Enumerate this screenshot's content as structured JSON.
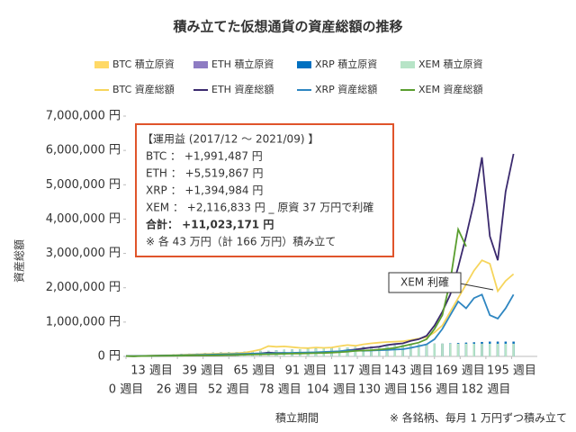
{
  "chart_data": {
    "type": "combo",
    "title": "積み立てた仮想通貨の資産総額の推移",
    "ylabel": "資産総額",
    "xlabel": "積立期間",
    "footnote": "※ 各銘柄、毎月 1 万円ずつ積み立て",
    "note_box": [
      "【運用益 (2017/12 ～ 2021/09) 】",
      "BTC ： +1,991,487 円",
      "ETH ： +5,519,867 円",
      "XRP ： +1,394,984 円",
      "XEM ： +2,116,833 円 _ 原資 37 万円で利確",
      "合計： +11,023,171 円",
      "※ 各 43 万円（計 166 万円）積み立て"
    ],
    "callout": "XEM 利確",
    "xlim": [
      0,
      208
    ],
    "xticks": [
      {
        "value": 0,
        "label": "0 週目"
      },
      {
        "value": 13,
        "label": "13 週目"
      },
      {
        "value": 26,
        "label": "26 週目"
      },
      {
        "value": 39,
        "label": "39 週目"
      },
      {
        "value": 52,
        "label": "52 週目"
      },
      {
        "value": 65,
        "label": "65 週目"
      },
      {
        "value": 78,
        "label": "78 週目"
      },
      {
        "value": 91,
        "label": "91 週目"
      },
      {
        "value": 104,
        "label": "104 週目"
      },
      {
        "value": 117,
        "label": "117 週目"
      },
      {
        "value": 130,
        "label": "130 週目"
      },
      {
        "value": 143,
        "label": "143 週目"
      },
      {
        "value": 156,
        "label": "156 週目"
      },
      {
        "value": 169,
        "label": "169 週目"
      },
      {
        "value": 182,
        "label": "182 週目"
      },
      {
        "value": 195,
        "label": "195 週目"
      }
    ],
    "ylim": [
      0,
      7000000
    ],
    "yticks": [
      {
        "value": 0,
        "label": "0 円"
      },
      {
        "value": 1000000,
        "label": "1,000,000 円"
      },
      {
        "value": 2000000,
        "label": "2,000,000 円"
      },
      {
        "value": 3000000,
        "label": "3,000,000 円"
      },
      {
        "value": 4000000,
        "label": "4,000,000 円"
      },
      {
        "value": 5000000,
        "label": "5,000,000 円"
      },
      {
        "value": 6000000,
        "label": "6,000,000 円"
      },
      {
        "value": 7000000,
        "label": "7,000,000 円"
      }
    ],
    "x": [
      0,
      4,
      8,
      12,
      16,
      20,
      24,
      28,
      32,
      36,
      40,
      44,
      48,
      52,
      56,
      60,
      64,
      68,
      72,
      76,
      80,
      84,
      88,
      92,
      96,
      100,
      104,
      108,
      112,
      116,
      120,
      124,
      128,
      132,
      136,
      140,
      144,
      148,
      152,
      156,
      160,
      164,
      168,
      172,
      176,
      180,
      184,
      188,
      192,
      196
    ],
    "series": [
      {
        "name": "BTC 積立原資",
        "type": "bar",
        "color": "#ffd966",
        "values": [
          10000,
          10000,
          20000,
          30000,
          40000,
          50000,
          60000,
          70000,
          80000,
          90000,
          100000,
          110000,
          120000,
          130000,
          130000,
          140000,
          150000,
          160000,
          170000,
          180000,
          190000,
          200000,
          210000,
          220000,
          230000,
          240000,
          250000,
          250000,
          260000,
          270000,
          280000,
          290000,
          300000,
          310000,
          320000,
          330000,
          340000,
          350000,
          360000,
          370000,
          370000,
          380000,
          390000,
          400000,
          410000,
          420000,
          430000,
          430000,
          430000,
          430000
        ]
      },
      {
        "name": "ETH 積立原資",
        "type": "bar",
        "color": "#8e7cc3",
        "values": [
          10000,
          10000,
          20000,
          30000,
          40000,
          50000,
          60000,
          70000,
          80000,
          90000,
          100000,
          110000,
          120000,
          130000,
          130000,
          140000,
          150000,
          160000,
          170000,
          180000,
          190000,
          200000,
          210000,
          220000,
          230000,
          240000,
          250000,
          250000,
          260000,
          270000,
          280000,
          290000,
          300000,
          310000,
          320000,
          330000,
          340000,
          350000,
          360000,
          370000,
          370000,
          380000,
          390000,
          400000,
          410000,
          420000,
          430000,
          430000,
          430000,
          430000
        ]
      },
      {
        "name": "XRP 積立原資",
        "type": "bar",
        "color": "#0070c0",
        "values": [
          10000,
          10000,
          20000,
          30000,
          40000,
          50000,
          60000,
          70000,
          80000,
          90000,
          100000,
          110000,
          120000,
          130000,
          130000,
          140000,
          150000,
          160000,
          170000,
          180000,
          190000,
          200000,
          210000,
          220000,
          230000,
          240000,
          250000,
          250000,
          260000,
          270000,
          280000,
          290000,
          300000,
          310000,
          320000,
          330000,
          340000,
          350000,
          360000,
          370000,
          370000,
          380000,
          390000,
          400000,
          410000,
          420000,
          430000,
          430000,
          430000,
          430000
        ]
      },
      {
        "name": "XEM 積立原資",
        "type": "bar",
        "color": "#b7e4c7",
        "values": [
          10000,
          10000,
          20000,
          30000,
          40000,
          50000,
          60000,
          70000,
          80000,
          90000,
          100000,
          110000,
          120000,
          130000,
          130000,
          140000,
          150000,
          160000,
          170000,
          180000,
          190000,
          200000,
          210000,
          220000,
          230000,
          240000,
          250000,
          250000,
          260000,
          270000,
          280000,
          290000,
          300000,
          310000,
          320000,
          330000,
          340000,
          350000,
          360000,
          370000,
          370000,
          370000,
          370000,
          370000,
          370000,
          370000,
          370000,
          370000,
          370000,
          370000
        ]
      },
      {
        "name": "BTC 資産総額",
        "type": "line",
        "color": "#f6d55c",
        "values": [
          10000,
          8000,
          15000,
          22000,
          28000,
          32000,
          38000,
          45000,
          55000,
          60000,
          70000,
          75000,
          85000,
          90000,
          95000,
          110000,
          150000,
          200000,
          300000,
          280000,
          290000,
          270000,
          250000,
          240000,
          260000,
          250000,
          260000,
          300000,
          330000,
          310000,
          350000,
          380000,
          400000,
          420000,
          430000,
          440000,
          480000,
          520000,
          560000,
          700000,
          900000,
          1300000,
          1700000,
          2100000,
          2500000,
          2800000,
          2700000,
          1900000,
          2200000,
          2400000
        ]
      },
      {
        "name": "ETH 資産総額",
        "type": "line",
        "color": "#3b2a6e",
        "values": [
          10000,
          7000,
          12000,
          16000,
          18000,
          20000,
          22000,
          25000,
          25000,
          28000,
          30000,
          28000,
          35000,
          38000,
          45000,
          60000,
          80000,
          90000,
          110000,
          100000,
          100000,
          90000,
          95000,
          100000,
          110000,
          120000,
          130000,
          140000,
          180000,
          200000,
          230000,
          260000,
          280000,
          330000,
          360000,
          380000,
          450000,
          500000,
          600000,
          900000,
          1300000,
          1800000,
          2600000,
          3500000,
          4500000,
          5800000,
          3500000,
          2800000,
          4800000,
          5900000
        ]
      },
      {
        "name": "XRP 資産総額",
        "type": "line",
        "color": "#2e86c1",
        "values": [
          10000,
          8000,
          14000,
          18000,
          22000,
          25000,
          30000,
          35000,
          40000,
          45000,
          50000,
          55000,
          60000,
          65000,
          70000,
          75000,
          80000,
          85000,
          90000,
          95000,
          100000,
          105000,
          110000,
          115000,
          120000,
          130000,
          140000,
          150000,
          180000,
          170000,
          165000,
          170000,
          180000,
          190000,
          200000,
          210000,
          250000,
          300000,
          350000,
          500000,
          800000,
          1200000,
          1600000,
          1400000,
          1700000,
          1800000,
          1200000,
          1100000,
          1400000,
          1800000
        ]
      },
      {
        "name": "XEM 資産総額",
        "type": "line",
        "color": "#5a9e2f",
        "values": [
          10000,
          6000,
          10000,
          14000,
          16000,
          18000,
          20000,
          22000,
          25000,
          28000,
          30000,
          32000,
          35000,
          40000,
          45000,
          50000,
          55000,
          60000,
          65000,
          70000,
          75000,
          80000,
          85000,
          90000,
          95000,
          100000,
          110000,
          120000,
          140000,
          160000,
          170000,
          180000,
          200000,
          220000,
          250000,
          300000,
          350000,
          400000,
          500000,
          800000,
          1200000,
          2200000,
          3700000,
          3200000,
          null,
          null,
          null,
          null,
          null,
          null
        ]
      }
    ]
  }
}
